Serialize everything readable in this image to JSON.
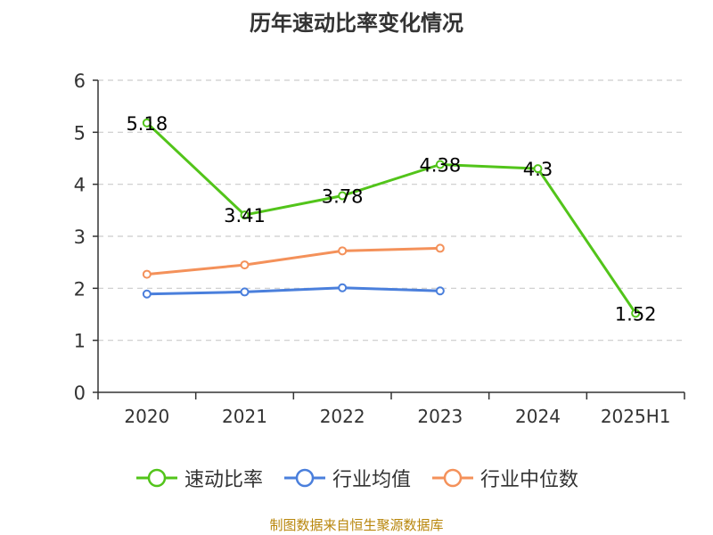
{
  "title": "历年速动比率变化情况",
  "source": "制图数据来自恒生聚源数据库",
  "colors": {
    "axis": "#333333",
    "grid": "#cccccc",
    "label": "#333333"
  },
  "chart_data": {
    "type": "line",
    "categories": [
      "2020",
      "2021",
      "2022",
      "2023",
      "2024",
      "2025H1"
    ],
    "ylim": [
      0,
      6
    ],
    "yticks": [
      "0",
      "1",
      "2",
      "3",
      "4",
      "5",
      "6"
    ],
    "grid": true,
    "legend_position": "bottom",
    "series": [
      {
        "name": "速动比率",
        "color": "#52c41a",
        "values": [
          5.18,
          3.41,
          3.78,
          4.38,
          4.3,
          1.52
        ],
        "labels": [
          "5.18",
          "3.41",
          "3.78",
          "4.38",
          "4.3",
          "1.52"
        ],
        "show_labels": true
      },
      {
        "name": "行业均值",
        "color": "#4a7fdc",
        "values": [
          1.89,
          1.93,
          2.01,
          1.95,
          null,
          null
        ],
        "show_labels": false
      },
      {
        "name": "行业中位数",
        "color": "#f4915a",
        "values": [
          2.27,
          2.45,
          2.72,
          2.77,
          null,
          null
        ],
        "show_labels": false
      }
    ]
  }
}
